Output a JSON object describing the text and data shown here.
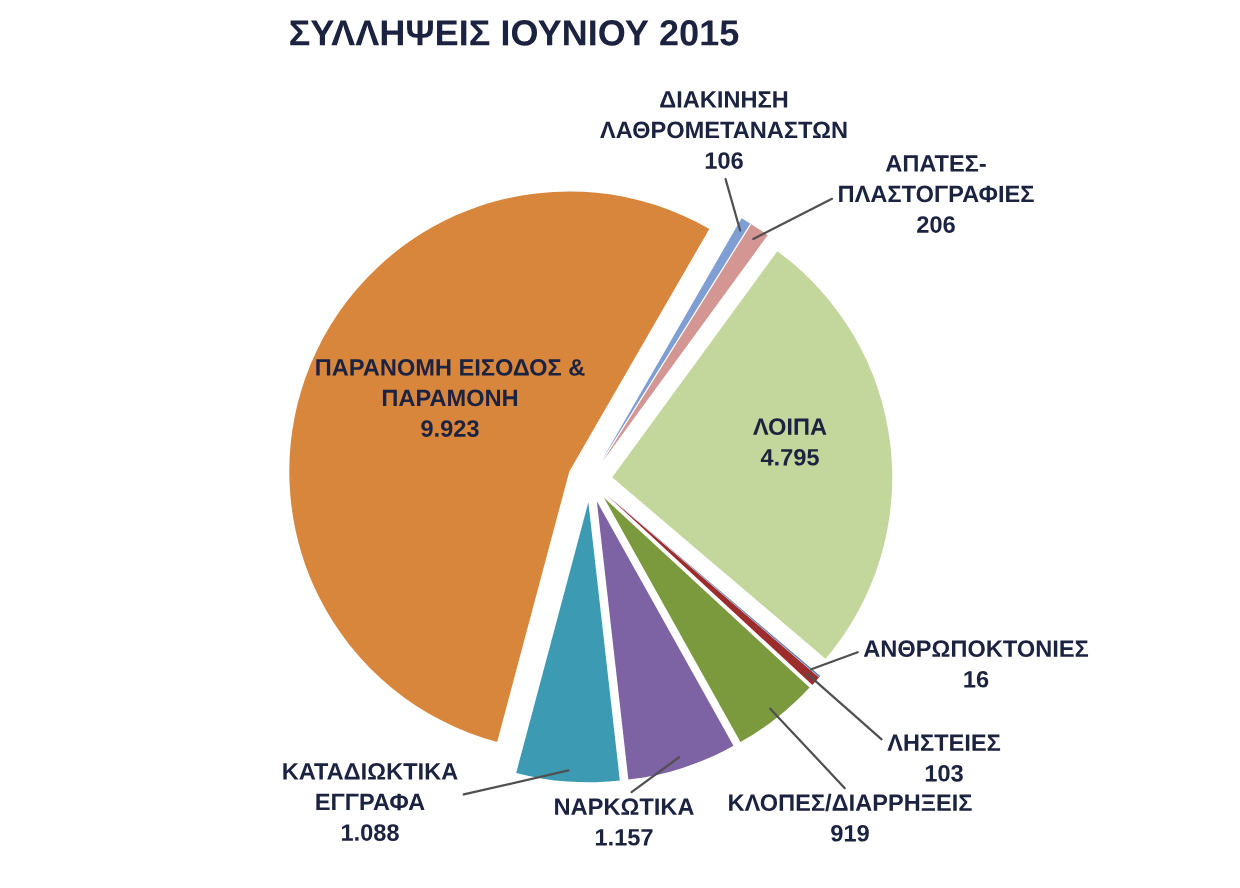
{
  "chart_data": {
    "type": "pie",
    "title": "ΣΥΛΛΗΨΕΙΣ ΙΟΥΝΙΟΥ 2015",
    "categories": [
      "ΔΙΑΚΙΝΗΣΗ\nΛΑΘΡΟΜΕΤΑΝΑΣΤΩΝ",
      "ΑΠΑΤΕΣ-\nΠΛΑΣΤΟΓΡΑΦΙΕΣ",
      "ΛΟΙΠΑ",
      "ΑΝΘΡΩΠΟΚΤΟΝΙΕΣ",
      "ΛΗΣΤΕΙΕΣ",
      "ΚΛΟΠΕΣ/ΔΙΑΡΡΗΞΕΙΣ",
      "ΝΑΡΚΩΤΙΚΑ",
      "ΚΑΤΑΔΙΩΚΤΙΚΑ\nΕΓΓΡΑΦΑ",
      "ΠΑΡΑΝΟΜΗ ΕΙΣΟΔΟΣ &\nΠΑΡΑΜΟΝΗ"
    ],
    "values": [
      106,
      206,
      4795,
      16,
      103,
      919,
      1157,
      1088,
      9923
    ],
    "value_labels": [
      "106",
      "206",
      "4.795",
      "16",
      "103",
      "919",
      "1.157",
      "1.088",
      "9.923"
    ],
    "colors": [
      "#7f9ed4",
      "#d49693",
      "#c3d69b",
      "#5b7fb8",
      "#9b2d2d",
      "#7a9a3d",
      "#7e63a4",
      "#3d9ab3",
      "#d9863d"
    ]
  }
}
